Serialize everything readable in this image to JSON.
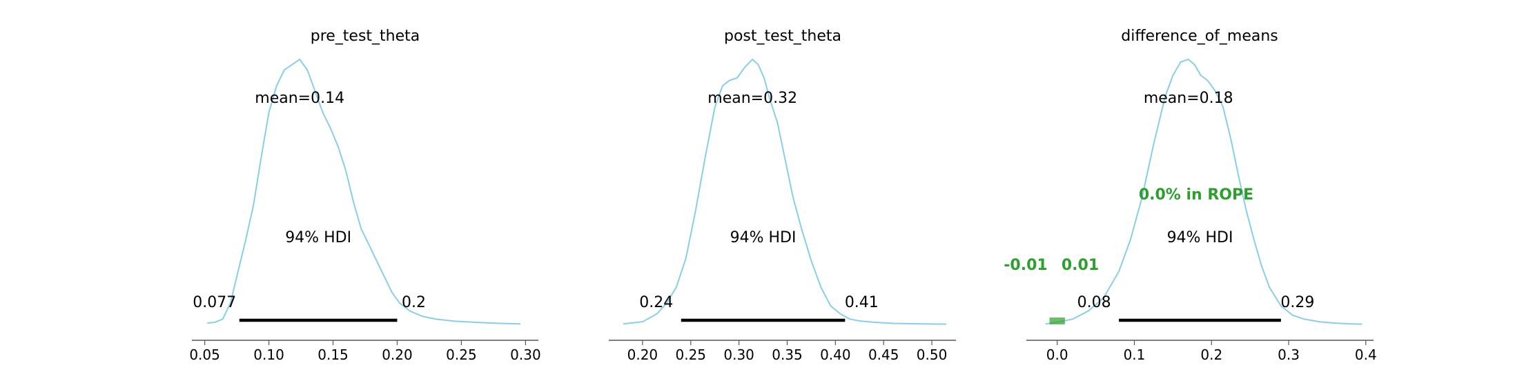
{
  "theme": {
    "curve_color": "#87ceeb",
    "hdi_color": "#000000",
    "rope_color": "#2ca02c",
    "text_color": "#000000",
    "axis_color": "#555555"
  },
  "chart_data": [
    {
      "type": "area",
      "title": "pre_test_theta",
      "mean_label": "mean=0.14",
      "hdi_label": "94% HDI",
      "hdi": [
        0.077,
        0.2
      ],
      "hdi_low_label": "0.077",
      "hdi_high_label": "0.2",
      "xlim": [
        0.04,
        0.31
      ],
      "ylim": [
        0,
        1.06
      ],
      "xticks": [
        0.05,
        0.1,
        0.15,
        0.2,
        0.25,
        0.3
      ],
      "xtick_labels": [
        "0.05",
        "0.10",
        "0.15",
        "0.20",
        "0.25",
        "0.30"
      ],
      "grid": false,
      "density": {
        "x": [
          0.052,
          0.058,
          0.064,
          0.07,
          0.076,
          0.082,
          0.088,
          0.094,
          0.1,
          0.106,
          0.112,
          0.118,
          0.124,
          0.13,
          0.136,
          0.142,
          0.148,
          0.154,
          0.16,
          0.166,
          0.172,
          0.178,
          0.184,
          0.19,
          0.196,
          0.202,
          0.21,
          0.22,
          0.23,
          0.245,
          0.26,
          0.28,
          0.296
        ],
        "y": [
          0.005,
          0.008,
          0.02,
          0.08,
          0.2,
          0.32,
          0.45,
          0.63,
          0.8,
          0.9,
          0.96,
          0.98,
          1.0,
          0.96,
          0.88,
          0.8,
          0.74,
          0.67,
          0.58,
          0.46,
          0.36,
          0.3,
          0.24,
          0.18,
          0.12,
          0.08,
          0.05,
          0.03,
          0.02,
          0.012,
          0.008,
          0.004,
          0.002
        ]
      }
    },
    {
      "type": "area",
      "title": "post_test_theta",
      "mean_label": "mean=0.32",
      "hdi_label": "94% HDI",
      "hdi": [
        0.24,
        0.41
      ],
      "hdi_low_label": "0.24",
      "hdi_high_label": "0.41",
      "xlim": [
        0.165,
        0.525
      ],
      "ylim": [
        0,
        1.06
      ],
      "xticks": [
        0.2,
        0.25,
        0.3,
        0.35,
        0.4,
        0.45,
        0.5
      ],
      "xtick_labels": [
        "0.20",
        "0.25",
        "0.30",
        "0.35",
        "0.40",
        "0.45",
        "0.50"
      ],
      "grid": false,
      "density": {
        "x": [
          0.18,
          0.2,
          0.215,
          0.225,
          0.235,
          0.245,
          0.255,
          0.265,
          0.275,
          0.283,
          0.29,
          0.298,
          0.306,
          0.314,
          0.32,
          0.326,
          0.332,
          0.34,
          0.348,
          0.356,
          0.365,
          0.375,
          0.385,
          0.395,
          0.405,
          0.415,
          0.425,
          0.44,
          0.46,
          0.49,
          0.515
        ],
        "y": [
          0.002,
          0.01,
          0.04,
          0.08,
          0.14,
          0.25,
          0.43,
          0.63,
          0.82,
          0.9,
          0.92,
          0.93,
          0.97,
          1.0,
          0.98,
          0.93,
          0.85,
          0.76,
          0.62,
          0.48,
          0.36,
          0.24,
          0.14,
          0.07,
          0.04,
          0.02,
          0.013,
          0.008,
          0.004,
          0.002,
          0.001
        ]
      }
    },
    {
      "type": "area",
      "title": "difference_of_means",
      "mean_label": "mean=0.18",
      "hdi_label": "94% HDI",
      "hdi": [
        0.08,
        0.29
      ],
      "hdi_low_label": "0.08",
      "hdi_high_label": "0.29",
      "rope": [
        -0.01,
        0.01
      ],
      "rope_low_label": "-0.01",
      "rope_high_label": "0.01",
      "rope_text": "0.0% in ROPE",
      "xlim": [
        -0.04,
        0.41
      ],
      "ylim": [
        0,
        1.06
      ],
      "xticks": [
        0.0,
        0.1,
        0.2,
        0.3,
        0.4
      ],
      "xtick_labels": [
        "0.0",
        "0.1",
        "0.2",
        "0.3",
        "0.4"
      ],
      "grid": false,
      "density": {
        "x": [
          -0.015,
          0.0,
          0.02,
          0.04,
          0.06,
          0.08,
          0.095,
          0.11,
          0.125,
          0.14,
          0.15,
          0.16,
          0.17,
          0.178,
          0.186,
          0.195,
          0.205,
          0.215,
          0.225,
          0.235,
          0.245,
          0.255,
          0.265,
          0.275,
          0.29,
          0.305,
          0.32,
          0.34,
          0.36,
          0.38,
          0.395
        ],
        "y": [
          0.002,
          0.008,
          0.02,
          0.05,
          0.1,
          0.2,
          0.32,
          0.48,
          0.68,
          0.86,
          0.94,
          0.99,
          1.0,
          0.98,
          0.94,
          0.92,
          0.88,
          0.82,
          0.7,
          0.56,
          0.43,
          0.32,
          0.22,
          0.14,
          0.07,
          0.035,
          0.02,
          0.01,
          0.005,
          0.002,
          0.001
        ]
      }
    }
  ]
}
